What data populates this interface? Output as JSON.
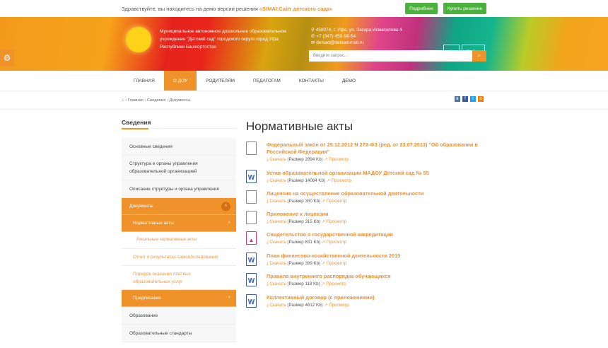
{
  "topbar": {
    "greeting": "Здравствуйте, вы находитесь на демо версии решения",
    "product": "«SIMAI:Сайт детского сада»",
    "more": "Подробнее",
    "buy": "Купить решение"
  },
  "header": {
    "org_lines": [
      "Муниципальное автономное дошкольное образовательное",
      "учреждение \"Детский сад\" городского округа город Уфа",
      "Республики Башкортостан"
    ],
    "address": "450074, г. Уфа, ул. Загира Исмагилова 4",
    "phone": "+7 (347) 459-98-54",
    "email": "detsad@detsad-mail.ru",
    "search_placeholder": "Введите запрос...",
    "login": "Войти",
    "colors": {
      "accent": "#f0922a",
      "green": "#4cb13c"
    }
  },
  "nav": [
    "ГЛАВНАЯ",
    "О ДОУ",
    "РОДИТЕЛЯМ",
    "ПЕДАГОГАМ",
    "КОНТАКТЫ",
    "ДЕМО"
  ],
  "breadcrumb": [
    "Главная",
    "Сведения",
    "Документы"
  ],
  "social": [
    "vk",
    "f",
    "t",
    "ok"
  ],
  "sidebar": {
    "title": "Сведения",
    "items": [
      "Основные сведения",
      "Структура и органы управления образовательной организацией",
      "Описание структуры и органа управления",
      "Документы",
      "Нормативные акты",
      "Локальные нормативные акты",
      "Отчет о результатах самообследования",
      "Порядок оказания платных образовательных услуг",
      "Предписания",
      "Образование",
      "Образовательные стандарты"
    ]
  },
  "main": {
    "title": "Нормативные акты",
    "download": "Скачать",
    "view": "Просмотр",
    "docs": [
      {
        "title": "Федеральный закон от 29.12.2012 N 273-ФЗ (ред. от 23.07.2013) \"Об образовании в Российской Федерации\"",
        "size": "(Размер 2994 Kb)",
        "icon": "file-icon"
      },
      {
        "title": "Устав образовательной организации МАДОУ Детский сад № 55",
        "size": "(Размер 14084 Kb)",
        "icon": "word-icon"
      },
      {
        "title": "Лицензия на осуществление образовательной деятельности",
        "size": "(Размер 300 Kb)",
        "icon": "file-icon"
      },
      {
        "title": "Приложение к лицензии",
        "size": "(Размер 315 Kb)",
        "icon": "file-icon"
      },
      {
        "title": "Свидетельство о государственной аккредитации",
        "size": "(Размер 831 Kb)",
        "icon": "image-file-icon"
      },
      {
        "title": "План финансово-хозяйственной деятельности 2015",
        "size": "(Размер 399 Kb)",
        "icon": "word-icon"
      },
      {
        "title": "Правила внутреннего распорядка обучающихся",
        "size": "(Размер 118 Kb)",
        "icon": "word-icon"
      },
      {
        "title": "Коллективный договор (с приложениями)",
        "size": "(Размер 4612 Kb)",
        "icon": "word-icon"
      }
    ]
  }
}
